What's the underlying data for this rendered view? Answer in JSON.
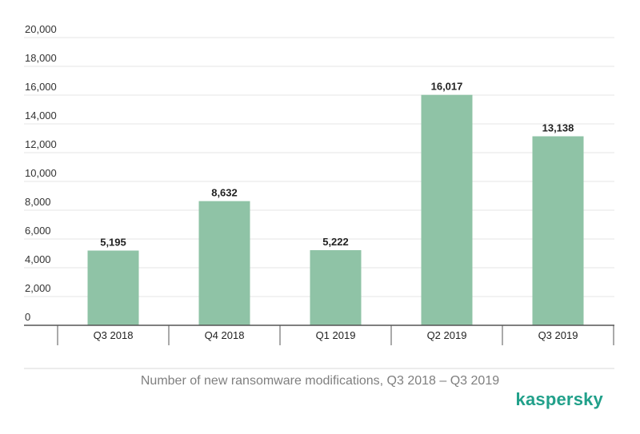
{
  "chart_data": {
    "type": "bar",
    "categories": [
      "Q3 2018",
      "Q4 2018",
      "Q1 2019",
      "Q2 2019",
      "Q3 2019"
    ],
    "values": [
      5195,
      8632,
      5222,
      16017,
      13138
    ],
    "data_labels": [
      "5,195",
      "8,632",
      "5,222",
      "16,017",
      "13,138"
    ],
    "y_ticks": [
      0,
      2000,
      4000,
      6000,
      8000,
      10000,
      12000,
      14000,
      16000,
      18000,
      20000
    ],
    "y_tick_labels": [
      "0",
      "2,000",
      "4,000",
      "6,000",
      "8,000",
      "10,000",
      "12,000",
      "14,000",
      "16,000",
      "18,000",
      "20,000"
    ],
    "ylim": [
      0,
      20000
    ],
    "grid": true,
    "legend": "none",
    "bar_color": "#8fc3a6",
    "title": "Number of new ransomware modifications, Q3 2018 – Q3 2019",
    "xlabel": "",
    "ylabel": ""
  },
  "brand": {
    "logo_text": "kaspersky",
    "logo_color": "#21a08a"
  }
}
